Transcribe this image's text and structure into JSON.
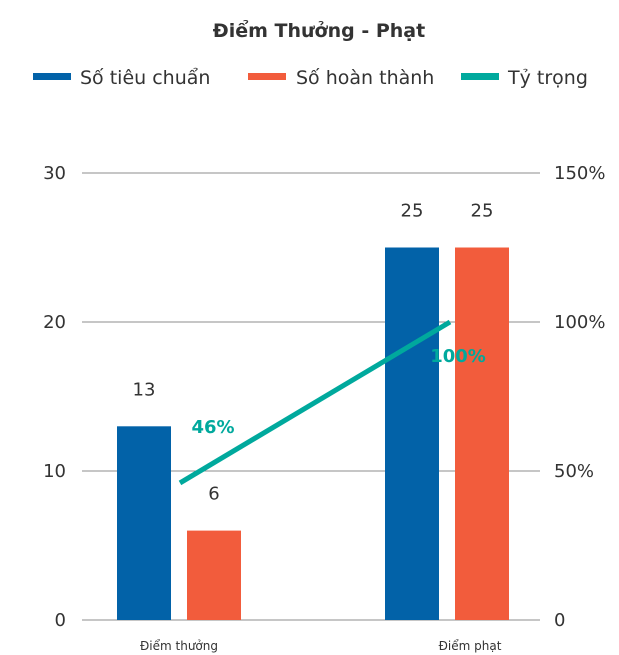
{
  "chart_data": {
    "type": "bar",
    "title": "Điểm Thưởng - Phạt",
    "categories": [
      "Điểm thưởng",
      "Điểm phạt"
    ],
    "series": [
      {
        "name": "Số tiêu chuẩn",
        "kind": "bar",
        "axis": "left",
        "color": "#0262A8",
        "values": [
          13,
          25
        ],
        "labels": [
          "13",
          "25"
        ]
      },
      {
        "name": "Số hoàn thành",
        "kind": "bar",
        "axis": "left",
        "color": "#F25C3C",
        "values": [
          6,
          25
        ],
        "labels": [
          "6",
          "25"
        ]
      },
      {
        "name": "Tỷ trọng",
        "kind": "line",
        "axis": "right",
        "color": "#00A99D",
        "values": [
          46,
          100
        ],
        "labels": [
          "46%",
          "100%"
        ]
      }
    ],
    "y_left": {
      "ylim": [
        0,
        30
      ],
      "ticks": [
        "0",
        "10",
        "20",
        "30"
      ]
    },
    "y_right": {
      "ylim": [
        0,
        150
      ],
      "ticks": [
        "0",
        "50%",
        "100%",
        "150%"
      ]
    },
    "grid": true,
    "legend_position": "top"
  }
}
